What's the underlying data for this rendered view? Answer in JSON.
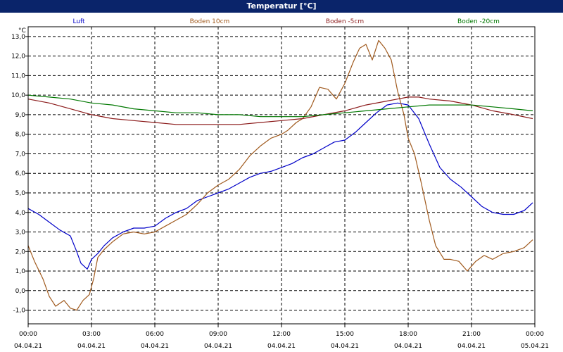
{
  "window": {
    "title": "Temperatur [°C]"
  },
  "chart_data": {
    "type": "line",
    "title": "Temperatur [°C]",
    "ylabel": "°C",
    "xlabel": "",
    "ylim": [
      -1.7,
      13.5
    ],
    "x_range": [
      "00:00",
      "00:00"
    ],
    "grid": true,
    "legend_position": "top",
    "y_ticks": [
      "13,0",
      "12,0",
      "11,0",
      "10,0",
      "9,0",
      "8,0",
      "7,0",
      "6,0",
      "5,0",
      "4,0",
      "3,0",
      "2,0",
      "1,0",
      "0,0",
      "-1,0"
    ],
    "y_tick_values": [
      13,
      12,
      11,
      10,
      9,
      8,
      7,
      6,
      5,
      4,
      3,
      2,
      1,
      0,
      -1
    ],
    "x_ticks": [
      {
        "time": "00:00",
        "date": "04.04.21",
        "hour": 0
      },
      {
        "time": "03:00",
        "date": "04.04.21",
        "hour": 3
      },
      {
        "time": "06:00",
        "date": "04.04.21",
        "hour": 6
      },
      {
        "time": "09:00",
        "date": "04.04.21",
        "hour": 9
      },
      {
        "time": "12:00",
        "date": "04.04.21",
        "hour": 12
      },
      {
        "time": "15:00",
        "date": "04.04.21",
        "hour": 15
      },
      {
        "time": "18:00",
        "date": "04.04.21",
        "hour": 18
      },
      {
        "time": "21:00",
        "date": "04.04.21",
        "hour": 21
      },
      {
        "time": "00:00",
        "date": "05.04.21",
        "hour": 24
      }
    ],
    "series": [
      {
        "name": "Luft",
        "color": "#0000c8",
        "x": [
          0,
          0.5,
          1,
          1.5,
          2,
          2.3,
          2.5,
          2.8,
          3,
          3.3,
          3.6,
          4,
          4.5,
          5,
          5.5,
          6,
          6.5,
          7,
          7.5,
          8,
          8.5,
          9,
          9.5,
          10,
          10.5,
          11,
          11.5,
          12,
          12.5,
          13,
          13.5,
          14,
          14.5,
          15,
          15.5,
          16,
          16.5,
          17,
          17.5,
          18,
          18.5,
          19,
          19.5,
          20,
          20.5,
          21,
          21.5,
          22,
          22.5,
          23,
          23.5,
          23.9
        ],
        "values": [
          4.2,
          3.9,
          3.5,
          3.1,
          2.8,
          2.0,
          1.4,
          1.1,
          1.6,
          1.9,
          2.3,
          2.7,
          3.0,
          3.2,
          3.2,
          3.3,
          3.7,
          4.0,
          4.2,
          4.6,
          4.8,
          5.0,
          5.2,
          5.5,
          5.8,
          6.0,
          6.1,
          6.3,
          6.5,
          6.8,
          7.0,
          7.3,
          7.6,
          7.7,
          8.1,
          8.6,
          9.1,
          9.5,
          9.6,
          9.5,
          8.8,
          7.5,
          6.3,
          5.7,
          5.3,
          4.8,
          4.3,
          4.0,
          3.9,
          3.9,
          4.1,
          4.5
        ]
      },
      {
        "name": "Boden 10cm",
        "color": "#a05a1e",
        "x": [
          0,
          0.3,
          0.7,
          1,
          1.3,
          1.7,
          2,
          2.3,
          2.6,
          2.9,
          3.1,
          3.3,
          3.6,
          4,
          4.5,
          5,
          5.5,
          6,
          6.5,
          7,
          7.5,
          8,
          8.5,
          9,
          9.5,
          10,
          10.5,
          11,
          11.5,
          12,
          12.3,
          12.7,
          13,
          13.4,
          13.8,
          14.2,
          14.6,
          15,
          15.4,
          15.7,
          16,
          16.3,
          16.6,
          16.9,
          17.2,
          17.5,
          17.8,
          18,
          18.3,
          18.6,
          19,
          19.3,
          19.7,
          20,
          20.4,
          20.8,
          21.2,
          21.6,
          22,
          22.5,
          23,
          23.5,
          23.9
        ],
        "values": [
          2.3,
          1.5,
          0.6,
          -0.3,
          -0.8,
          -0.5,
          -0.9,
          -1.0,
          -0.5,
          -0.2,
          0.6,
          1.7,
          2.1,
          2.5,
          2.9,
          3.0,
          2.9,
          3.0,
          3.3,
          3.6,
          3.9,
          4.4,
          5.0,
          5.4,
          5.7,
          6.2,
          6.9,
          7.4,
          7.8,
          8.0,
          8.2,
          8.6,
          8.8,
          9.4,
          10.4,
          10.3,
          9.8,
          10.6,
          11.7,
          12.4,
          12.6,
          11.8,
          12.8,
          12.4,
          11.8,
          10.2,
          9.0,
          7.8,
          7.0,
          5.6,
          3.6,
          2.3,
          1.6,
          1.6,
          1.5,
          1.0,
          1.5,
          1.8,
          1.6,
          1.9,
          2.0,
          2.2,
          2.6
        ]
      },
      {
        "name": "Boden -5cm",
        "color": "#8b1a1a",
        "x": [
          0,
          1,
          2,
          3,
          4,
          5,
          6,
          7,
          8,
          9,
          10,
          11,
          12,
          13,
          14,
          15,
          16,
          17,
          17.5,
          18,
          18.5,
          19,
          20,
          21,
          22,
          23,
          23.9
        ],
        "values": [
          9.8,
          9.6,
          9.3,
          9.0,
          8.8,
          8.7,
          8.6,
          8.5,
          8.5,
          8.5,
          8.5,
          8.6,
          8.7,
          8.8,
          9.0,
          9.2,
          9.5,
          9.7,
          9.8,
          9.9,
          9.9,
          9.8,
          9.7,
          9.5,
          9.2,
          9.0,
          8.8
        ]
      },
      {
        "name": "Boden -20cm",
        "color": "#007800",
        "x": [
          0,
          1,
          2,
          3,
          4,
          5,
          6,
          7,
          8,
          9,
          10,
          11,
          12,
          13,
          14,
          15,
          16,
          17,
          18,
          19,
          20,
          21,
          22,
          23,
          23.9
        ],
        "values": [
          10.0,
          9.9,
          9.8,
          9.6,
          9.5,
          9.3,
          9.2,
          9.1,
          9.1,
          9.0,
          9.0,
          8.9,
          8.9,
          8.9,
          9.0,
          9.1,
          9.2,
          9.3,
          9.4,
          9.5,
          9.5,
          9.5,
          9.4,
          9.3,
          9.2
        ]
      }
    ]
  }
}
